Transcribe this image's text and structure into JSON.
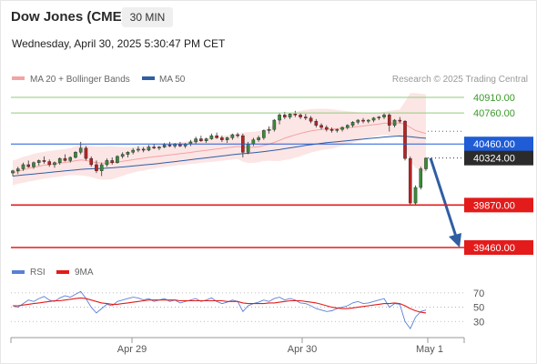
{
  "header": {
    "title": "Dow Jones (CME)",
    "timeframe": "30 MIN",
    "datetime": "Wednesday, April 30, 2025 5:30:47 PM CET"
  },
  "legend": {
    "bollinger": "MA 20 + Bollinger Bands",
    "ma50": "MA 50",
    "credit": "Research © 2025 Trading Central",
    "rsi": "RSI",
    "rsi_ma": "9MA"
  },
  "colors": {
    "bollinger": "#f4a3a3",
    "ma50": "#2f5ea3",
    "resistance_green": "#8fce7a",
    "support_red": "#e41b1b",
    "pivot_blue": "#1f5cd6",
    "last_price_bg": "#2b2b2b",
    "candle_up": "#3a8a3a",
    "candle_down": "#b82323",
    "arrow": "#2f5ea3",
    "rsi_line": "#5b7fd6",
    "rsi_ma": "#e41b1b"
  },
  "chart_data": [
    {
      "type": "candlestick",
      "levels": [
        {
          "value": 40910.0,
          "label": "40910.00",
          "kind": "resistance"
        },
        {
          "value": 40760.0,
          "label": "40760.00",
          "kind": "resistance"
        },
        {
          "value": 40460.0,
          "label": "40460.00",
          "kind": "pivot"
        },
        {
          "value": 40324.0,
          "label": "40324.00",
          "kind": "last"
        },
        {
          "value": 39870.0,
          "label": "39870.00",
          "kind": "support"
        },
        {
          "value": 39460.0,
          "label": "39460.00",
          "kind": "support"
        }
      ],
      "x_ticks": [
        "Apr 29",
        "Apr 30",
        "May 1"
      ],
      "candles": [
        [
          40180,
          40210,
          40150,
          40200
        ],
        [
          40200,
          40240,
          40170,
          40220
        ],
        [
          40220,
          40280,
          40200,
          40260
        ],
        [
          40260,
          40300,
          40230,
          40240
        ],
        [
          40240,
          40290,
          40220,
          40280
        ],
        [
          40280,
          40310,
          40250,
          40300
        ],
        [
          40300,
          40340,
          40270,
          40290
        ],
        [
          40290,
          40310,
          40240,
          40260
        ],
        [
          40260,
          40290,
          40230,
          40280
        ],
        [
          40280,
          40330,
          40260,
          40320
        ],
        [
          40320,
          40360,
          40290,
          40300
        ],
        [
          40300,
          40340,
          40280,
          40330
        ],
        [
          40330,
          40390,
          40320,
          40380
        ],
        [
          40380,
          40480,
          40360,
          40420
        ],
        [
          40420,
          40440,
          40300,
          40320
        ],
        [
          40320,
          40340,
          40240,
          40260
        ],
        [
          40260,
          40300,
          40180,
          40200
        ],
        [
          40200,
          40280,
          40150,
          40260
        ],
        [
          40260,
          40320,
          40240,
          40300
        ],
        [
          40300,
          40330,
          40260,
          40280
        ],
        [
          40280,
          40350,
          40270,
          40340
        ],
        [
          40340,
          40380,
          40320,
          40360
        ],
        [
          40360,
          40390,
          40330,
          40380
        ],
        [
          40380,
          40420,
          40360,
          40400
        ],
        [
          40400,
          40440,
          40380,
          40410
        ],
        [
          40410,
          40430,
          40380,
          40400
        ],
        [
          40400,
          40450,
          40390,
          40430
        ],
        [
          40430,
          40460,
          40410,
          40420
        ],
        [
          40420,
          40440,
          40400,
          40430
        ],
        [
          40430,
          40470,
          40420,
          40450
        ],
        [
          40450,
          40480,
          40430,
          40440
        ],
        [
          40440,
          40470,
          40420,
          40460
        ],
        [
          40460,
          40480,
          40430,
          40440
        ],
        [
          40440,
          40470,
          40420,
          40460
        ],
        [
          40460,
          40500,
          40440,
          40480
        ],
        [
          40480,
          40530,
          40460,
          40510
        ],
        [
          40510,
          40540,
          40480,
          40490
        ],
        [
          40490,
          40520,
          40470,
          40510
        ],
        [
          40510,
          40560,
          40500,
          40540
        ],
        [
          40540,
          40570,
          40510,
          40520
        ],
        [
          40520,
          40540,
          40480,
          40500
        ],
        [
          40500,
          40530,
          40470,
          40520
        ],
        [
          40520,
          40560,
          40500,
          40550
        ],
        [
          40550,
          40570,
          40520,
          40540
        ],
        [
          40540,
          40560,
          40330,
          40380
        ],
        [
          40380,
          40480,
          40360,
          40460
        ],
        [
          40460,
          40520,
          40440,
          40500
        ],
        [
          40500,
          40540,
          40480,
          40520
        ],
        [
          40520,
          40600,
          40500,
          40590
        ],
        [
          40590,
          40630,
          40560,
          40600
        ],
        [
          40600,
          40700,
          40580,
          40690
        ],
        [
          40690,
          40760,
          40650,
          40740
        ],
        [
          40740,
          40770,
          40700,
          40720
        ],
        [
          40720,
          40760,
          40700,
          40750
        ],
        [
          40750,
          40780,
          40720,
          40740
        ],
        [
          40740,
          40760,
          40700,
          40720
        ],
        [
          40720,
          40750,
          40690,
          40710
        ],
        [
          40710,
          40730,
          40660,
          40680
        ],
        [
          40680,
          40700,
          40620,
          40640
        ],
        [
          40640,
          40660,
          40600,
          40620
        ],
        [
          40620,
          40640,
          40580,
          40600
        ],
        [
          40600,
          40620,
          40570,
          40590
        ],
        [
          40590,
          40610,
          40570,
          40600
        ],
        [
          40600,
          40630,
          40580,
          40620
        ],
        [
          40620,
          40650,
          40600,
          40640
        ],
        [
          40640,
          40680,
          40620,
          40670
        ],
        [
          40670,
          40700,
          40650,
          40690
        ],
        [
          40690,
          40710,
          40660,
          40680
        ],
        [
          40680,
          40700,
          40660,
          40690
        ],
        [
          40690,
          40720,
          40670,
          40710
        ],
        [
          40710,
          40730,
          40690,
          40720
        ],
        [
          40720,
          40760,
          40700,
          40740
        ],
        [
          40740,
          40760,
          40580,
          40640
        ],
        [
          40640,
          40700,
          40620,
          40690
        ],
        [
          40690,
          40720,
          40660,
          40680
        ],
        [
          40680,
          40690,
          40300,
          40320
        ],
        [
          40320,
          40340,
          39870,
          39890
        ],
        [
          39890,
          40060,
          39870,
          40040
        ],
        [
          40040,
          40240,
          40020,
          40220
        ],
        [
          40220,
          40330,
          40200,
          40324
        ]
      ],
      "ma20": [
        40180,
        40195,
        40210,
        40222,
        40235,
        40245,
        40255,
        40262,
        40268,
        40275,
        40282,
        40290,
        40298,
        40306,
        40300,
        40290,
        40280,
        40275,
        40276,
        40280,
        40285,
        40292,
        40300,
        40308,
        40316,
        40322,
        40330,
        40336,
        40342,
        40348,
        40354,
        40360,
        40366,
        40372,
        40378,
        40386,
        40392,
        40398,
        40406,
        40412,
        40418,
        40424,
        40430,
        40436,
        40430,
        40426,
        40428,
        40434,
        40445,
        40458,
        40475,
        40495,
        40515,
        40532,
        40548,
        40562,
        40575,
        40586,
        40594,
        40600,
        40604,
        40606,
        40608,
        40612,
        40616,
        40622,
        40628,
        40634,
        40640,
        40646,
        40652,
        40660,
        40660,
        40662,
        40664,
        40650,
        40620,
        40590,
        40575,
        40560
      ],
      "ma50": [
        40150,
        40155,
        40160,
        40165,
        40170,
        40175,
        40180,
        40185,
        40190,
        40195,
        40200,
        40205,
        40210,
        40215,
        40218,
        40220,
        40222,
        40224,
        40227,
        40230,
        40234,
        40238,
        40242,
        40247,
        40252,
        40257,
        40262,
        40267,
        40272,
        40278,
        40284,
        40290,
        40296,
        40302,
        40308,
        40314,
        40320,
        40326,
        40332,
        40338,
        40344,
        40350,
        40356,
        40362,
        40366,
        40370,
        40375,
        40380,
        40386,
        40392,
        40399,
        40406,
        40414,
        40422,
        40430,
        40438,
        40446,
        40453,
        40460,
        40466,
        40472,
        40477,
        40482,
        40487,
        40492,
        40497,
        40502,
        40507,
        40512,
        40517,
        40522,
        40527,
        40530,
        40534,
        40537,
        40535,
        40530,
        40524,
        40519,
        40515
      ],
      "band_width": [
        120,
        120,
        125,
        125,
        130,
        130,
        130,
        130,
        130,
        130,
        130,
        130,
        140,
        150,
        150,
        150,
        155,
        160,
        160,
        160,
        150,
        140,
        130,
        125,
        120,
        120,
        115,
        115,
        110,
        110,
        110,
        110,
        110,
        110,
        110,
        115,
        115,
        115,
        120,
        120,
        120,
        120,
        120,
        120,
        140,
        150,
        150,
        150,
        150,
        160,
        180,
        200,
        210,
        220,
        220,
        220,
        215,
        210,
        205,
        200,
        195,
        190,
        180,
        170,
        160,
        150,
        140,
        130,
        120,
        115,
        110,
        110,
        120,
        125,
        130,
        220,
        330,
        360,
        370,
        380
      ],
      "forecast_arrow": {
        "from": 40324,
        "to": 39460
      }
    },
    {
      "type": "line",
      "name": "RSI",
      "yticks": [
        70,
        50,
        30
      ],
      "ylim": [
        10,
        80
      ],
      "series": [
        {
          "name": "RSI",
          "values": [
            52,
            50,
            55,
            60,
            58,
            62,
            65,
            60,
            58,
            63,
            66,
            64,
            68,
            72,
            62,
            50,
            42,
            48,
            54,
            52,
            58,
            60,
            62,
            64,
            63,
            60,
            62,
            58,
            60,
            62,
            58,
            60,
            56,
            58,
            60,
            62,
            58,
            60,
            63,
            58,
            55,
            57,
            60,
            58,
            44,
            52,
            55,
            57,
            60,
            58,
            62,
            64,
            60,
            62,
            60,
            56,
            55,
            52,
            48,
            46,
            44,
            45,
            48,
            50,
            52,
            56,
            58,
            55,
            56,
            58,
            60,
            62,
            50,
            55,
            54,
            30,
            20,
            36,
            44,
            46
          ]
        },
        {
          "name": "9MA",
          "values": [
            52,
            52,
            53,
            54,
            55,
            56,
            57,
            58,
            59,
            59,
            60,
            61,
            62,
            63,
            62,
            60,
            58,
            56,
            55,
            54,
            54,
            55,
            56,
            57,
            58,
            59,
            60,
            60,
            60,
            60,
            60,
            60,
            59,
            59,
            59,
            59,
            59,
            59,
            59,
            59,
            59,
            58,
            58,
            58,
            56,
            55,
            55,
            55,
            55,
            56,
            56,
            57,
            58,
            59,
            59,
            59,
            58,
            57,
            56,
            54,
            52,
            50,
            49,
            48,
            48,
            49,
            50,
            51,
            52,
            53,
            54,
            55,
            55,
            56,
            55,
            52,
            48,
            45,
            43,
            42
          ]
        }
      ]
    }
  ]
}
